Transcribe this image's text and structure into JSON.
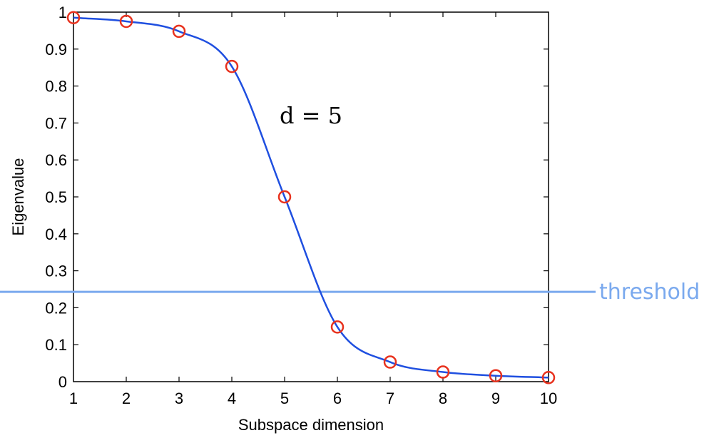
{
  "chart_data": {
    "type": "line",
    "xlabel": "Subspace dimension",
    "ylabel": "Eigenvalue",
    "xlim": [
      1,
      10
    ],
    "ylim": [
      0,
      1
    ],
    "x_ticks": [
      "1",
      "2",
      "3",
      "4",
      "5",
      "6",
      "7",
      "8",
      "9",
      "10"
    ],
    "y_ticks": [
      "0",
      "0.1",
      "0.2",
      "0.3",
      "0.4",
      "0.5",
      "0.6",
      "0.7",
      "0.8",
      "0.9",
      "1"
    ],
    "grid": false,
    "series": [
      {
        "x": [
          1,
          2,
          3,
          4,
          5,
          6,
          7,
          8,
          9,
          10
        ],
        "values": [
          0.985,
          0.975,
          0.948,
          0.853,
          0.5,
          0.148,
          0.053,
          0.026,
          0.016,
          0.011
        ],
        "line_color": "#1f4fe0",
        "marker": "circle",
        "marker_color": "#e8321e"
      }
    ],
    "threshold": {
      "value": 0.243,
      "label": "threshold",
      "color": "#7aa9ee"
    },
    "annotation": {
      "text": "d = 5",
      "x": 5.5,
      "y": 0.72
    }
  }
}
